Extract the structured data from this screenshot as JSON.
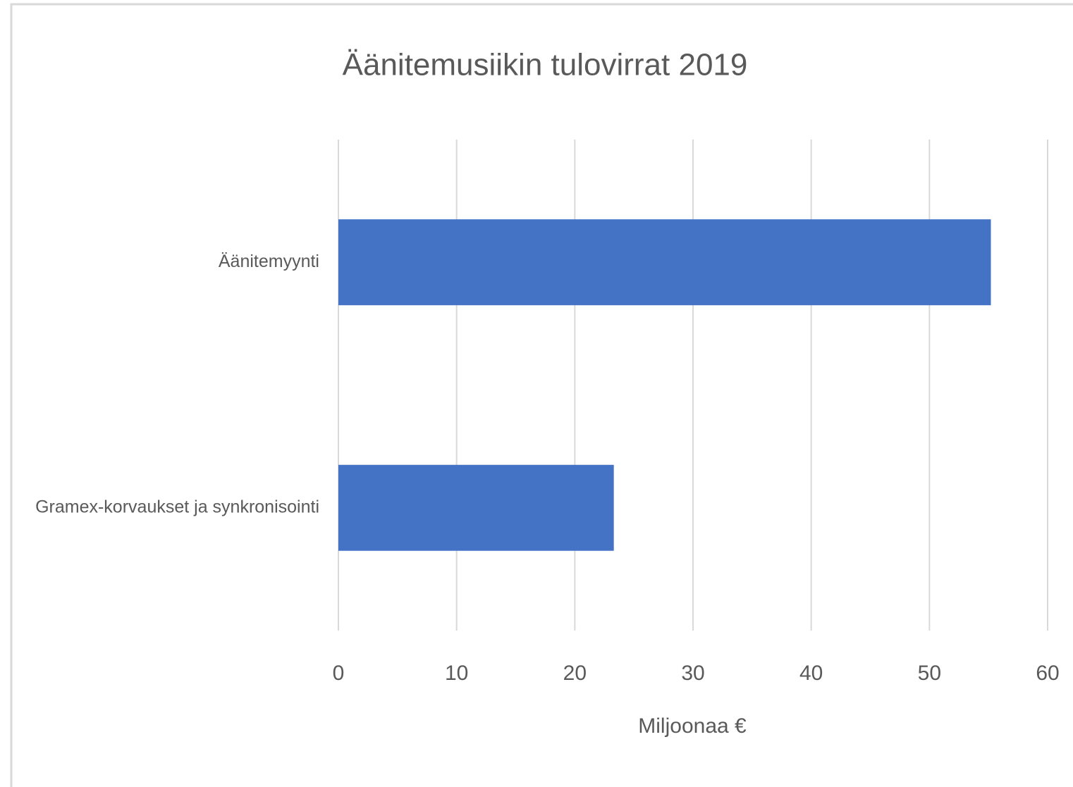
{
  "chart_data": {
    "type": "bar",
    "orientation": "horizontal",
    "title": "Äänitemusiikin tulovirrat 2019",
    "x_label": "Miljoonaa €",
    "categories": [
      "Äänitemyynti",
      "Gramex-korvaukset ja synkronisointi"
    ],
    "values": [
      55.2,
      23.3
    ],
    "color": "#4472c4",
    "xlim": [
      0,
      60
    ],
    "xticks": [
      0,
      10,
      20,
      30,
      40,
      50,
      60
    ],
    "grid": true
  }
}
